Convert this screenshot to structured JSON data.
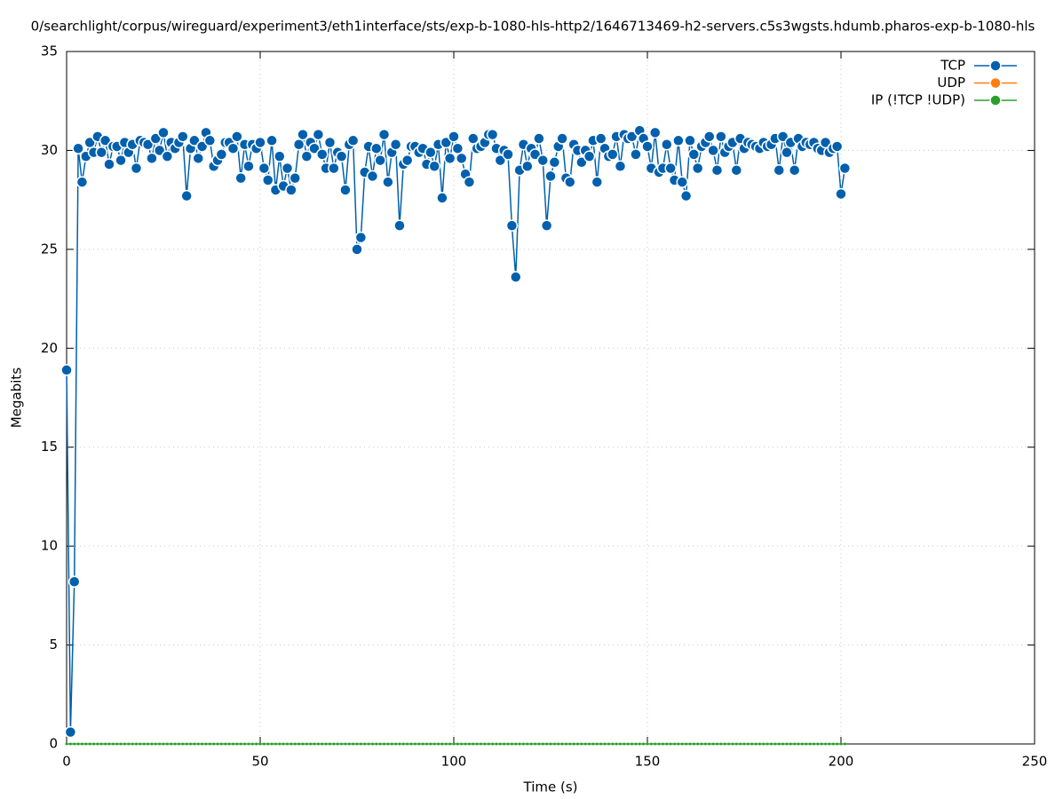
{
  "chart_data": {
    "type": "line",
    "title": "0/searchlight/corpus/wireguard/experiment3/eth1interface/sts/exp-b-1080-hls-http2/1646713469-h2-servers.c5s3wgsts.hdumb.pharos-exp-b-1080-hls",
    "xlabel": "Time (s)",
    "ylabel": "Megabits",
    "xlim": [
      0,
      250
    ],
    "ylim": [
      0,
      35
    ],
    "xticks": [
      0,
      50,
      100,
      150,
      200,
      250
    ],
    "yticks": [
      0,
      5,
      10,
      15,
      20,
      25,
      30,
      35
    ],
    "grid": true,
    "legend": "top-right",
    "x": [
      0,
      1,
      2,
      3,
      4,
      5,
      6,
      7,
      8,
      9,
      10,
      11,
      12,
      13,
      14,
      15,
      16,
      17,
      18,
      19,
      20,
      21,
      22,
      23,
      24,
      25,
      26,
      27,
      28,
      29,
      30,
      31,
      32,
      33,
      34,
      35,
      36,
      37,
      38,
      39,
      40,
      41,
      42,
      43,
      44,
      45,
      46,
      47,
      48,
      49,
      50,
      51,
      52,
      53,
      54,
      55,
      56,
      57,
      58,
      59,
      60,
      61,
      62,
      63,
      64,
      65,
      66,
      67,
      68,
      69,
      70,
      71,
      72,
      73,
      74,
      75,
      76,
      77,
      78,
      79,
      80,
      81,
      82,
      83,
      84,
      85,
      86,
      87,
      88,
      89,
      90,
      91,
      92,
      93,
      94,
      95,
      96,
      97,
      98,
      99,
      100,
      101,
      102,
      103,
      104,
      105,
      106,
      107,
      108,
      109,
      110,
      111,
      112,
      113,
      114,
      115,
      116,
      117,
      118,
      119,
      120,
      121,
      122,
      123,
      124,
      125,
      126,
      127,
      128,
      129,
      130,
      131,
      132,
      133,
      134,
      135,
      136,
      137,
      138,
      139,
      140,
      141,
      142,
      143,
      144,
      145,
      146,
      147,
      148,
      149,
      150,
      151,
      152,
      153,
      154,
      155,
      156,
      157,
      158,
      159,
      160,
      161,
      162,
      163,
      164,
      165,
      166,
      167,
      168,
      169,
      170,
      171,
      172,
      173,
      174,
      175,
      176,
      177,
      178,
      179,
      180,
      181,
      182,
      183,
      184,
      185,
      186,
      187,
      188,
      189,
      190,
      191,
      192,
      193,
      194,
      195,
      196,
      197,
      198,
      199,
      200,
      201
    ],
    "series": [
      {
        "name": "TCP",
        "color": "#0060ad",
        "values": [
          18.9,
          0.6,
          8.2,
          30.1,
          28.4,
          29.7,
          30.4,
          29.9,
          30.7,
          29.9,
          30.5,
          29.3,
          30.2,
          30.2,
          29.5,
          30.4,
          29.9,
          30.3,
          29.1,
          30.5,
          30.4,
          30.3,
          29.6,
          30.6,
          30.0,
          30.9,
          29.7,
          30.4,
          30.1,
          30.4,
          30.7,
          27.7,
          30.1,
          30.5,
          29.6,
          30.2,
          30.9,
          30.5,
          29.2,
          29.5,
          29.8,
          30.4,
          30.4,
          30.1,
          30.7,
          28.6,
          30.3,
          29.2,
          30.3,
          30.1,
          30.4,
          29.1,
          28.5,
          30.5,
          28.0,
          29.7,
          28.2,
          29.1,
          28.0,
          28.6,
          30.3,
          30.8,
          29.7,
          30.4,
          30.1,
          30.8,
          29.8,
          29.1,
          30.4,
          29.1,
          29.9,
          29.7,
          28.0,
          30.3,
          30.5,
          25.0,
          25.6,
          28.9,
          30.2,
          28.7,
          30.1,
          29.5,
          30.8,
          28.4,
          29.9,
          30.3,
          26.2,
          29.3,
          29.5,
          30.2,
          30.2,
          29.9,
          30.1,
          29.3,
          29.9,
          29.2,
          30.3,
          27.6,
          30.4,
          29.6,
          30.7,
          30.1,
          29.6,
          28.8,
          28.4,
          30.6,
          30.1,
          30.2,
          30.4,
          30.8,
          30.8,
          30.1,
          29.5,
          30.0,
          29.8,
          26.2,
          23.6,
          29.0,
          30.3,
          29.2,
          30.1,
          29.8,
          30.6,
          29.5,
          26.2,
          28.7,
          29.4,
          30.2,
          30.6,
          28.6,
          28.4,
          30.3,
          30.0,
          29.4,
          30.0,
          29.7,
          30.5,
          28.4,
          30.6,
          30.1,
          29.7,
          29.8,
          30.7,
          29.2,
          30.8,
          30.6,
          30.7,
          29.8,
          31.0,
          30.6,
          30.2,
          29.1,
          30.9,
          28.9,
          29.1,
          30.3,
          29.1,
          28.5,
          30.5,
          28.4,
          27.7,
          30.5,
          29.8,
          29.1,
          30.2,
          30.4,
          30.7,
          30.0,
          29.0,
          30.7,
          29.9,
          30.2,
          30.4,
          29.0,
          30.6,
          30.1,
          30.4,
          30.3,
          30.2,
          30.1,
          30.4,
          30.2,
          30.3,
          30.6,
          29.0,
          30.7,
          29.9,
          30.4,
          29.0,
          30.6,
          30.2,
          30.4,
          30.3,
          30.4,
          30.1,
          30.0,
          30.4,
          29.9,
          30.1,
          30.2,
          27.8,
          29.1
        ]
      },
      {
        "name": "UDP",
        "color": "#ff7f0e",
        "values": [
          null,
          null,
          null,
          null,
          null,
          null,
          null,
          null,
          null,
          null,
          null,
          null,
          null,
          null,
          null,
          null,
          null,
          null,
          null,
          null,
          null,
          null,
          null,
          null,
          null,
          null,
          null,
          null,
          null,
          null,
          null,
          null,
          null,
          null,
          null,
          null,
          null,
          null,
          null,
          null,
          null,
          null,
          null,
          null,
          null,
          null,
          null,
          null,
          null,
          null,
          null,
          null,
          null,
          null,
          null,
          null,
          null,
          null,
          null,
          null,
          null,
          null,
          null,
          null,
          null,
          null,
          null,
          null,
          null,
          null,
          null,
          null,
          null,
          null,
          null,
          null,
          null,
          null,
          null,
          null,
          null,
          null,
          null,
          null,
          null,
          null,
          null,
          null,
          null,
          null,
          null,
          null,
          null,
          null,
          null,
          null,
          null,
          null,
          null,
          null,
          null,
          null,
          null,
          null,
          null,
          null,
          null,
          null,
          null,
          null,
          null,
          null,
          null,
          null,
          null,
          null,
          null,
          null,
          null,
          null,
          null,
          null,
          null,
          null,
          null,
          null,
          null,
          null,
          null,
          null,
          null,
          null,
          null,
          null,
          null,
          null,
          null,
          null,
          null,
          null,
          null,
          null,
          null,
          null,
          null,
          null,
          null,
          null,
          null,
          null,
          null,
          null,
          null,
          null,
          null,
          null,
          null,
          null,
          null,
          null,
          null,
          null,
          null,
          null,
          null,
          null,
          null,
          null,
          null,
          null,
          null,
          null,
          null,
          null,
          null,
          null,
          null,
          null,
          null,
          null,
          null,
          null,
          null,
          null,
          null,
          null,
          null,
          null,
          null,
          null,
          null,
          null,
          null,
          null,
          null,
          null,
          null,
          null,
          null,
          null,
          null,
          null
        ]
      },
      {
        "name": "IP (!TCP  !UDP)",
        "color": "#2ca02c",
        "values": [
          0,
          0,
          0,
          0,
          0,
          0,
          0,
          0,
          0,
          0,
          0,
          0,
          0,
          0,
          0,
          0,
          0,
          0,
          0,
          0,
          0,
          0,
          0,
          0,
          0,
          0,
          0,
          0,
          0,
          0,
          0,
          0,
          0,
          0,
          0,
          0,
          0,
          0,
          0,
          0,
          0,
          0,
          0,
          0,
          0,
          0,
          0,
          0,
          0,
          0,
          0,
          0,
          0,
          0,
          0,
          0,
          0,
          0,
          0,
          0,
          0,
          0,
          0,
          0,
          0,
          0,
          0,
          0,
          0,
          0,
          0,
          0,
          0,
          0,
          0,
          0,
          0,
          0,
          0,
          0,
          0,
          0,
          0,
          0,
          0,
          0,
          0,
          0,
          0,
          0,
          0,
          0,
          0,
          0,
          0,
          0,
          0,
          0,
          0,
          0,
          0,
          0,
          0,
          0,
          0,
          0,
          0,
          0,
          0,
          0,
          0,
          0,
          0,
          0,
          0,
          0,
          0,
          0,
          0,
          0,
          0,
          0,
          0,
          0,
          0,
          0,
          0,
          0,
          0,
          0,
          0,
          0,
          0,
          0,
          0,
          0,
          0,
          0,
          0,
          0,
          0,
          0,
          0,
          0,
          0,
          0,
          0,
          0,
          0,
          0,
          0,
          0,
          0,
          0,
          0,
          0,
          0,
          0,
          0,
          0,
          0,
          0,
          0,
          0,
          0,
          0,
          0,
          0,
          0,
          0,
          0,
          0,
          0,
          0,
          0,
          0,
          0,
          0,
          0,
          0,
          0,
          0,
          0,
          0,
          0,
          0,
          0,
          0,
          0,
          0,
          0,
          0,
          0,
          0,
          0,
          0,
          0,
          0,
          0,
          0,
          0,
          0
        ]
      }
    ]
  }
}
